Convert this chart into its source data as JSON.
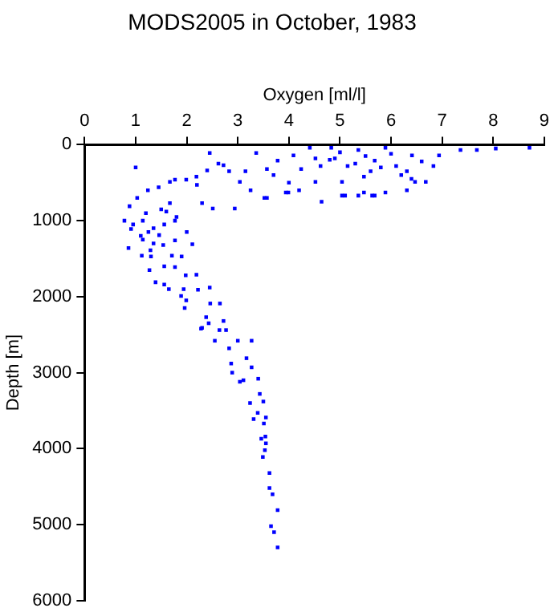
{
  "chart_data": {
    "type": "scatter",
    "title": "MODS2005 in October, 1983",
    "xlabel": "Oxygen [ml/l]",
    "ylabel": "Depth [m]",
    "xlim": [
      0,
      9
    ],
    "xticks": [
      0,
      1,
      2,
      3,
      4,
      5,
      6,
      7,
      8,
      9
    ],
    "ylim": [
      6000,
      0
    ],
    "yticks": [
      0,
      1000,
      2000,
      3000,
      4000,
      5000,
      6000
    ],
    "grid": false,
    "marker": "square",
    "series": [
      {
        "color": "#0000ff",
        "x": [
          3.78,
          3.71,
          3.65,
          3.78,
          3.68,
          3.62,
          3.62,
          3.49,
          3.53,
          3.55,
          3.46,
          3.54,
          3.51,
          3.55,
          3.31,
          3.39,
          3.5,
          3.24,
          3.43,
          3.4,
          3.04,
          3.11,
          2.89,
          3.27,
          2.87,
          3.17,
          2.83,
          3.27,
          3.0,
          2.55,
          2.77,
          2.64,
          2.3,
          2.43,
          2.72,
          2.38,
          2.28,
          2.65,
          2.46,
          1.96,
          1.89,
          1.99,
          2.45,
          2.22,
          1.94,
          1.65,
          1.56,
          2.19,
          1.98,
          1.77,
          1.56,
          1.27,
          1.39,
          1.9,
          1.71,
          1.3,
          1.12,
          2.11,
          1.54,
          1.29,
          0.86,
          1.14,
          1.77,
          1.46,
          0.91,
          0.78,
          0.88,
          1.03,
          1.24,
          1.45,
          1.77,
          2.19,
          2.4,
          2.72,
          3.04,
          3.25,
          3.57,
          3.99,
          4.64,
          4.52,
          4.24,
          5.04,
          5.47,
          5.63,
          1.67,
          1.56,
          1.77,
          1.14,
          1.35,
          8.71,
          8.05,
          7.68,
          7.36,
          6.94,
          6.83,
          6.68,
          6.47,
          6.31,
          5.89,
          5.68,
          5.36,
          5.1,
          5.04,
          5.47,
          5.89,
          5.36,
          4.83,
          4.41,
          4.52,
          4.09,
          3.78,
          3.36,
          3.57,
          3.15,
          2.83,
          2.62,
          2.45,
          2.2,
          1.99,
          1.67,
          2.3,
          2.51,
          2.94,
          3.52,
          3.94,
          4.2,
          6.31,
          5.68,
          6.41,
          6.1,
          5.15,
          4.62,
          5.0,
          5.5,
          6.0,
          4.8,
          5.3,
          5.8,
          6.2,
          6.6,
          4.9,
          5.6,
          6.4,
          4.0,
          3.7,
          1.0,
          1.2,
          1.5,
          1.8,
          2.0,
          1.1,
          1.35,
          1.6,
          0.95,
          1.25
        ],
        "values": [
          5300,
          5100,
          5020,
          4810,
          4600,
          4520,
          4320,
          4110,
          4020,
          3930,
          3870,
          3840,
          3670,
          3590,
          3610,
          3530,
          3380,
          3400,
          3280,
          3080,
          3120,
          3100,
          3000,
          2930,
          2880,
          2810,
          2680,
          2580,
          2580,
          2580,
          2440,
          2440,
          2410,
          2350,
          2320,
          2270,
          2420,
          2090,
          2090,
          2150,
          1990,
          2050,
          1880,
          1910,
          1900,
          1900,
          1840,
          1710,
          1720,
          1610,
          1600,
          1650,
          1810,
          1470,
          1460,
          1470,
          1460,
          1310,
          1320,
          1390,
          1360,
          1250,
          1260,
          1190,
          1110,
          1000,
          810,
          700,
          600,
          560,
          460,
          420,
          340,
          270,
          490,
          600,
          700,
          630,
          750,
          490,
          320,
          670,
          630,
          670,
          770,
          1050,
          1000,
          1000,
          1100,
          40,
          50,
          70,
          70,
          140,
          280,
          490,
          490,
          350,
          630,
          670,
          670,
          670,
          490,
          420,
          40,
          70,
          40,
          40,
          180,
          140,
          210,
          110,
          320,
          350,
          350,
          250,
          110,
          530,
          460,
          490,
          770,
          840,
          840,
          700,
          630,
          600,
          600,
          210,
          140,
          280,
          280,
          280,
          100,
          150,
          120,
          200,
          250,
          300,
          400,
          220,
          180,
          350,
          450,
          500,
          400,
          300,
          900,
          850,
          950,
          1150,
          1200,
          1300,
          880,
          1050,
          1150
        ]
      }
    ]
  }
}
